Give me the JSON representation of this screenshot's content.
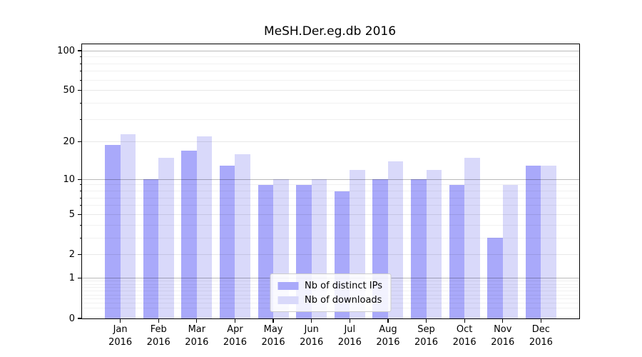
{
  "title": "MeSH.Der.eg.db 2016",
  "colors": {
    "distinct_ips": "#a9a9fa",
    "downloads": "#d9d9fa",
    "spine": "#000000",
    "legend_border": "#cccccc"
  },
  "chart_data": {
    "type": "bar",
    "title": "MeSH.Der.eg.db 2016",
    "scale": "log10(1+x)",
    "categories": [
      "Jan",
      "Feb",
      "Mar",
      "Apr",
      "May",
      "Jun",
      "Jul",
      "Aug",
      "Sep",
      "Oct",
      "Nov",
      "Dec"
    ],
    "year": "2016",
    "series": [
      {
        "name": "Nb of distinct IPs",
        "color": "#a9a9fa",
        "values": [
          19,
          10,
          17,
          13,
          9,
          9,
          8,
          10,
          10,
          9,
          3,
          13
        ]
      },
      {
        "name": "Nb of downloads",
        "color": "#d9d9fa",
        "values": [
          23,
          15,
          22,
          16,
          10,
          10,
          12,
          14,
          12,
          15,
          9,
          13
        ]
      }
    ],
    "xlabel": "",
    "ylabel": "",
    "yticks": [
      0,
      1,
      2,
      5,
      10,
      20,
      50,
      100
    ],
    "ylim": [
      0,
      112
    ],
    "grid": "both",
    "legend_position": "lower center"
  }
}
